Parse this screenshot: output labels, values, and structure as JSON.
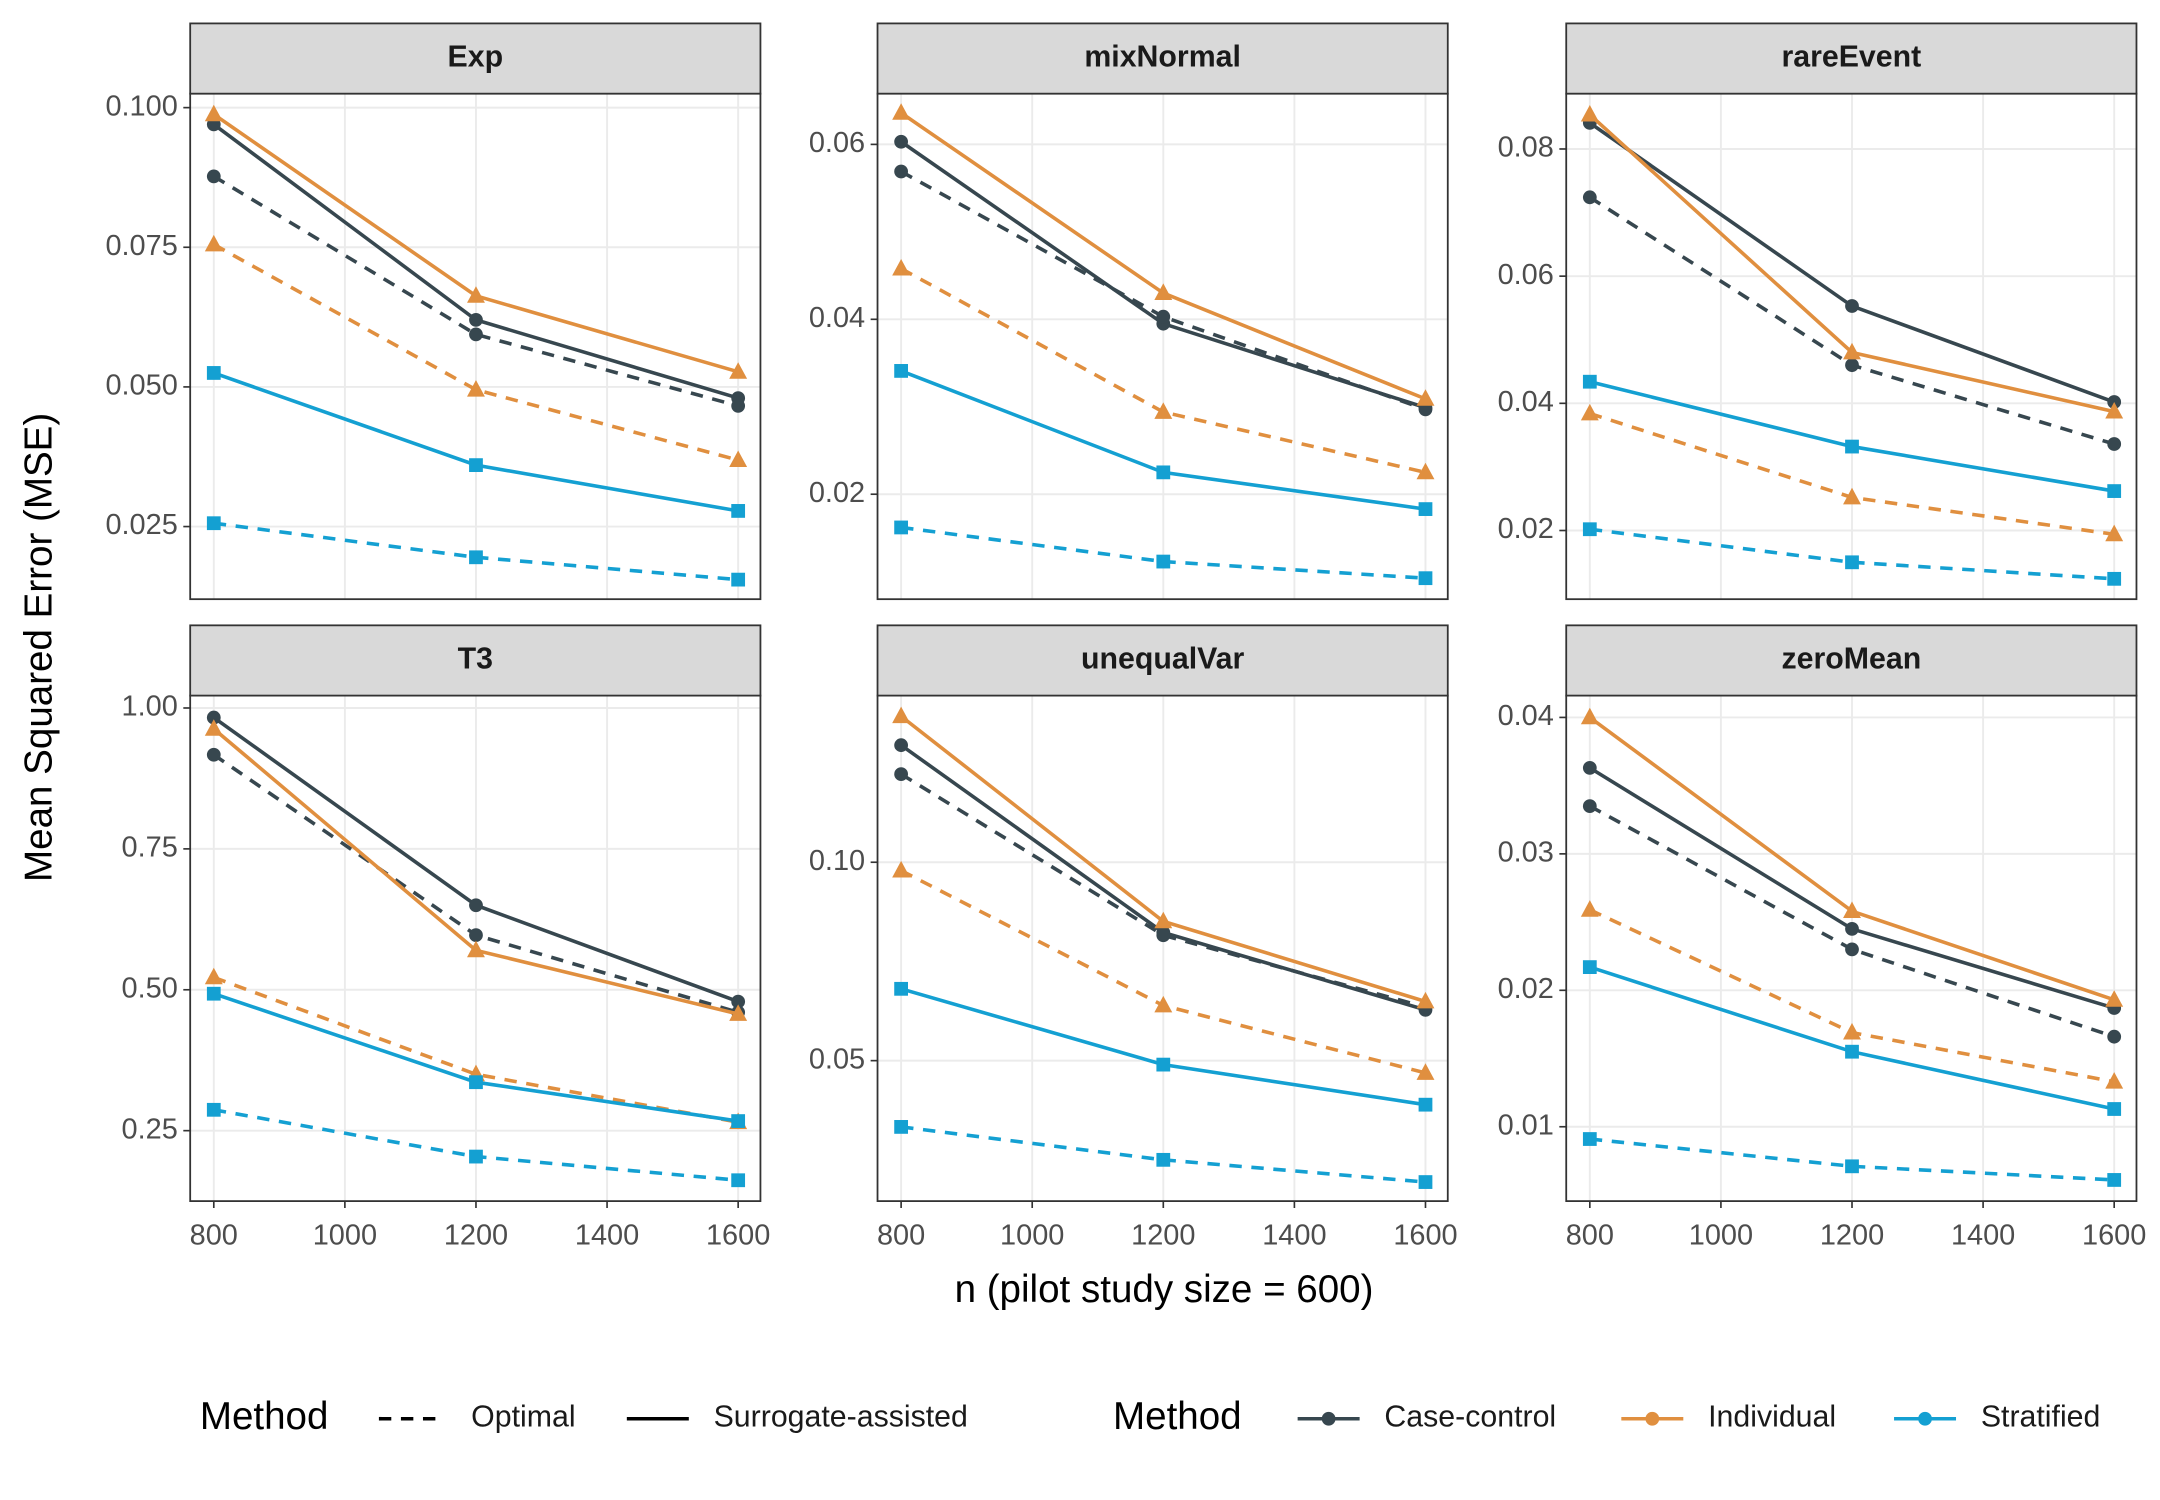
{
  "y_label": "Mean Squared Error (MSE)",
  "x_label": "n (pilot study size = 600)",
  "legends": [
    {
      "title": "Method",
      "items": [
        {
          "name": "Optimal",
          "dash": "dashed"
        },
        {
          "name": "Surrogate-assisted",
          "dash": "solid"
        }
      ]
    },
    {
      "title": "Method",
      "items": [
        {
          "name": "Case-control",
          "color": "#37474f"
        },
        {
          "name": "Individual",
          "color": "#e08f3f"
        },
        {
          "name": "Stratified",
          "color": "#14a0d2"
        }
      ]
    }
  ],
  "chart_data": [
    {
      "type": "line",
      "title": "Exp",
      "x": [
        800,
        1200,
        1600
      ],
      "xlim": [
        764,
        1634
      ],
      "xticks": [
        800,
        1000,
        1200,
        1400,
        1600
      ],
      "ylim": [
        0.012,
        0.1025
      ],
      "yticks": [
        {
          "value": 0.1,
          "label": "0.100"
        },
        0.075,
        {
          "value": 0.05,
          "label": "0.050"
        },
        0.025
      ],
      "grid": true,
      "series": [
        {
          "color": "#37474f",
          "shape": "circle",
          "dash": "solid",
          "values": [
            0.097,
            0.062,
            0.048
          ]
        },
        {
          "color": "#37474f",
          "shape": "circle",
          "dash": "dashed",
          "values": [
            0.0877,
            0.0594,
            0.0466
          ]
        },
        {
          "color": "#e08f3f",
          "shape": "triangle",
          "dash": "solid",
          "values": [
            0.0988,
            0.0663,
            0.0527
          ]
        },
        {
          "color": "#e08f3f",
          "shape": "triangle",
          "dash": "dashed",
          "values": [
            0.0755,
            0.0495,
            0.0369
          ]
        },
        {
          "color": "#14a0d2",
          "shape": "square",
          "dash": "solid",
          "values": [
            0.0525,
            0.036,
            0.0278
          ]
        },
        {
          "color": "#14a0d2",
          "shape": "square",
          "dash": "dashed",
          "values": [
            0.0256,
            0.0195,
            0.0155
          ]
        }
      ]
    },
    {
      "type": "line",
      "title": "mixNormal",
      "x": [
        800,
        1200,
        1600
      ],
      "xlim": [
        764,
        1634
      ],
      "xticks": [
        800,
        1000,
        1200,
        1400,
        1600
      ],
      "ylim": [
        0.008,
        0.0658
      ],
      "yticks": [
        0.06,
        0.04,
        0.02
      ],
      "grid": true,
      "series": [
        {
          "color": "#37474f",
          "shape": "circle",
          "dash": "solid",
          "values": [
            0.0603,
            0.0395,
            0.0299
          ]
        },
        {
          "color": "#37474f",
          "shape": "circle",
          "dash": "dashed",
          "values": [
            0.0569,
            0.0403,
            0.0297
          ]
        },
        {
          "color": "#e08f3f",
          "shape": "triangle",
          "dash": "solid",
          "values": [
            0.0636,
            0.043,
            0.0309
          ]
        },
        {
          "color": "#e08f3f",
          "shape": "triangle",
          "dash": "dashed",
          "values": [
            0.0458,
            0.0294,
            0.0225
          ]
        },
        {
          "color": "#14a0d2",
          "shape": "square",
          "dash": "solid",
          "values": [
            0.0341,
            0.0225,
            0.0183
          ]
        },
        {
          "color": "#14a0d2",
          "shape": "square",
          "dash": "dashed",
          "values": [
            0.0162,
            0.0123,
            0.0104
          ]
        }
      ]
    },
    {
      "type": "line",
      "title": "rareEvent",
      "x": [
        800,
        1200,
        1600
      ],
      "xlim": [
        764,
        1634
      ],
      "xticks": [
        800,
        1000,
        1200,
        1400,
        1600
      ],
      "ylim": [
        0.0092,
        0.0887
      ],
      "yticks": [
        0.08,
        0.06,
        0.04,
        0.02
      ],
      "grid": true,
      "series": [
        {
          "color": "#37474f",
          "shape": "circle",
          "dash": "solid",
          "values": [
            0.0841,
            0.0553,
            0.0402
          ]
        },
        {
          "color": "#37474f",
          "shape": "circle",
          "dash": "dashed",
          "values": [
            0.0724,
            0.046,
            0.0336
          ]
        },
        {
          "color": "#e08f3f",
          "shape": "triangle",
          "dash": "solid",
          "values": [
            0.0854,
            0.048,
            0.0387
          ]
        },
        {
          "color": "#e08f3f",
          "shape": "triangle",
          "dash": "dashed",
          "values": [
            0.0384,
            0.0252,
            0.0194
          ]
        },
        {
          "color": "#14a0d2",
          "shape": "square",
          "dash": "solid",
          "values": [
            0.0434,
            0.0332,
            0.0262
          ]
        },
        {
          "color": "#14a0d2",
          "shape": "square",
          "dash": "dashed",
          "values": [
            0.0202,
            0.015,
            0.0124
          ]
        }
      ]
    },
    {
      "type": "line",
      "title": "T3",
      "x": [
        800,
        1200,
        1600
      ],
      "xlim": [
        764,
        1634
      ],
      "xticks": [
        800,
        1000,
        1200,
        1400,
        1600
      ],
      "ylim": [
        0.125,
        1.022
      ],
      "yticks": [
        {
          "value": 1,
          "label": "1.00"
        },
        0.75,
        {
          "value": 0.5,
          "label": "0.50"
        },
        0.25
      ],
      "grid": true,
      "series": [
        {
          "color": "#37474f",
          "shape": "circle",
          "dash": "solid",
          "values": [
            0.983,
            0.65,
            0.479
          ]
        },
        {
          "color": "#37474f",
          "shape": "circle",
          "dash": "dashed",
          "values": [
            0.917,
            0.597,
            0.46
          ]
        },
        {
          "color": "#e08f3f",
          "shape": "triangle",
          "dash": "solid",
          "values": [
            0.963,
            0.57,
            0.457
          ]
        },
        {
          "color": "#e08f3f",
          "shape": "triangle",
          "dash": "dashed",
          "values": [
            0.522,
            0.35,
            0.265
          ]
        },
        {
          "color": "#14a0d2",
          "shape": "square",
          "dash": "solid",
          "values": [
            0.493,
            0.336,
            0.267
          ]
        },
        {
          "color": "#14a0d2",
          "shape": "square",
          "dash": "dashed",
          "values": [
            0.287,
            0.204,
            0.162
          ]
        }
      ]
    },
    {
      "type": "line",
      "title": "unequalVar",
      "x": [
        800,
        1200,
        1600
      ],
      "xlim": [
        764,
        1634
      ],
      "xticks": [
        800,
        1000,
        1200,
        1400,
        1600
      ],
      "ylim": [
        0.0146,
        0.142
      ],
      "yticks": [
        {
          "value": 0.1,
          "label": "0.10"
        },
        0.05
      ],
      "grid": true,
      "series": [
        {
          "color": "#37474f",
          "shape": "circle",
          "dash": "solid",
          "values": [
            0.1295,
            0.0823,
            0.0628
          ]
        },
        {
          "color": "#37474f",
          "shape": "circle",
          "dash": "dashed",
          "values": [
            0.1222,
            0.0816,
            0.0635
          ]
        },
        {
          "color": "#e08f3f",
          "shape": "triangle",
          "dash": "solid",
          "values": [
            0.1368,
            0.0851,
            0.0649
          ]
        },
        {
          "color": "#e08f3f",
          "shape": "triangle",
          "dash": "dashed",
          "values": [
            0.0979,
            0.0639,
            0.0469
          ]
        },
        {
          "color": "#14a0d2",
          "shape": "square",
          "dash": "solid",
          "values": [
            0.0681,
            0.049,
            0.0389
          ]
        },
        {
          "color": "#14a0d2",
          "shape": "square",
          "dash": "dashed",
          "values": [
            0.0333,
            0.025,
            0.0194
          ]
        }
      ]
    },
    {
      "type": "line",
      "title": "zeroMean",
      "x": [
        800,
        1200,
        1600
      ],
      "xlim": [
        764,
        1634
      ],
      "xticks": [
        800,
        1000,
        1200,
        1400,
        1600
      ],
      "ylim": [
        0.00455,
        0.0416
      ],
      "yticks": [
        0.04,
        0.03,
        0.02,
        0.01
      ],
      "grid": true,
      "series": [
        {
          "color": "#37474f",
          "shape": "circle",
          "dash": "solid",
          "values": [
            0.0363,
            0.0245,
            0.0187
          ]
        },
        {
          "color": "#37474f",
          "shape": "circle",
          "dash": "dashed",
          "values": [
            0.0335,
            0.023,
            0.0166
          ]
        },
        {
          "color": "#e08f3f",
          "shape": "triangle",
          "dash": "solid",
          "values": [
            0.04,
            0.0258,
            0.0193
          ]
        },
        {
          "color": "#e08f3f",
          "shape": "triangle",
          "dash": "dashed",
          "values": [
            0.0259,
            0.0169,
            0.0133
          ]
        },
        {
          "color": "#14a0d2",
          "shape": "square",
          "dash": "solid",
          "values": [
            0.0217,
            0.0155,
            0.0113
          ]
        },
        {
          "color": "#14a0d2",
          "shape": "square",
          "dash": "dashed",
          "values": [
            0.0091,
            0.0071,
            0.0061
          ]
        }
      ]
    }
  ]
}
